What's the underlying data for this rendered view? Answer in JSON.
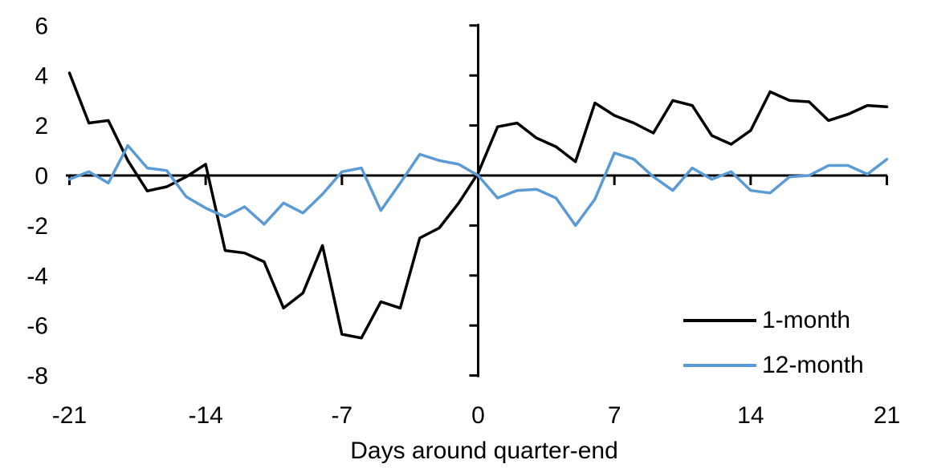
{
  "chart_data": {
    "type": "line",
    "title": "",
    "xlabel": "Days around quarter-end",
    "ylabel": "",
    "x": [
      -21,
      -20,
      -19,
      -18,
      -17,
      -16,
      -15,
      -14,
      -13,
      -12,
      -11,
      -10,
      -9,
      -8,
      -7,
      -6,
      -5,
      -4,
      -3,
      -2,
      -1,
      0,
      1,
      2,
      3,
      4,
      5,
      6,
      7,
      8,
      9,
      10,
      11,
      12,
      13,
      14,
      15,
      16,
      17,
      18,
      19,
      20,
      21
    ],
    "series": [
      {
        "name": "1-month",
        "color": "#000000",
        "values": [
          4.1,
          2.1,
          2.2,
          0.6,
          -0.62,
          -0.45,
          -0.05,
          0.45,
          -3.0,
          -3.1,
          -3.45,
          -5.3,
          -4.7,
          -2.8,
          -6.35,
          -6.5,
          -5.05,
          -5.3,
          -2.5,
          -2.1,
          -1.1,
          0.1,
          1.95,
          2.1,
          1.5,
          1.15,
          0.55,
          2.9,
          2.4,
          2.1,
          1.7,
          3.0,
          2.8,
          1.6,
          1.25,
          1.8,
          3.35,
          3.0,
          2.95,
          2.2,
          2.45,
          2.8,
          2.75
        ]
      },
      {
        "name": "12-month",
        "color": "#5B9BD5",
        "values": [
          -0.15,
          0.15,
          -0.3,
          1.2,
          0.3,
          0.2,
          -0.85,
          -1.3,
          -1.65,
          -1.25,
          -1.95,
          -1.1,
          -1.5,
          -0.75,
          0.15,
          0.3,
          -1.4,
          -0.3,
          0.85,
          0.6,
          0.45,
          0.0,
          -0.9,
          -0.6,
          -0.55,
          -0.9,
          -2.0,
          -0.95,
          0.9,
          0.65,
          -0.05,
          -0.6,
          0.3,
          -0.15,
          0.15,
          -0.6,
          -0.7,
          -0.05,
          0.0,
          0.4,
          0.4,
          0.05,
          0.65
        ]
      }
    ],
    "xticks": [
      -21,
      -14,
      -7,
      0,
      7,
      14,
      21
    ],
    "yticks": [
      6,
      4,
      2,
      0,
      -2,
      -4,
      -6,
      -8
    ],
    "xlim": [
      -21,
      21
    ],
    "ylim": [
      -8,
      6
    ],
    "grid": false,
    "legend_position": "bottom-right"
  },
  "legend": {
    "items": [
      {
        "label": "1-month",
        "color": "#000000"
      },
      {
        "label": "12-month",
        "color": "#5B9BD5"
      }
    ]
  }
}
